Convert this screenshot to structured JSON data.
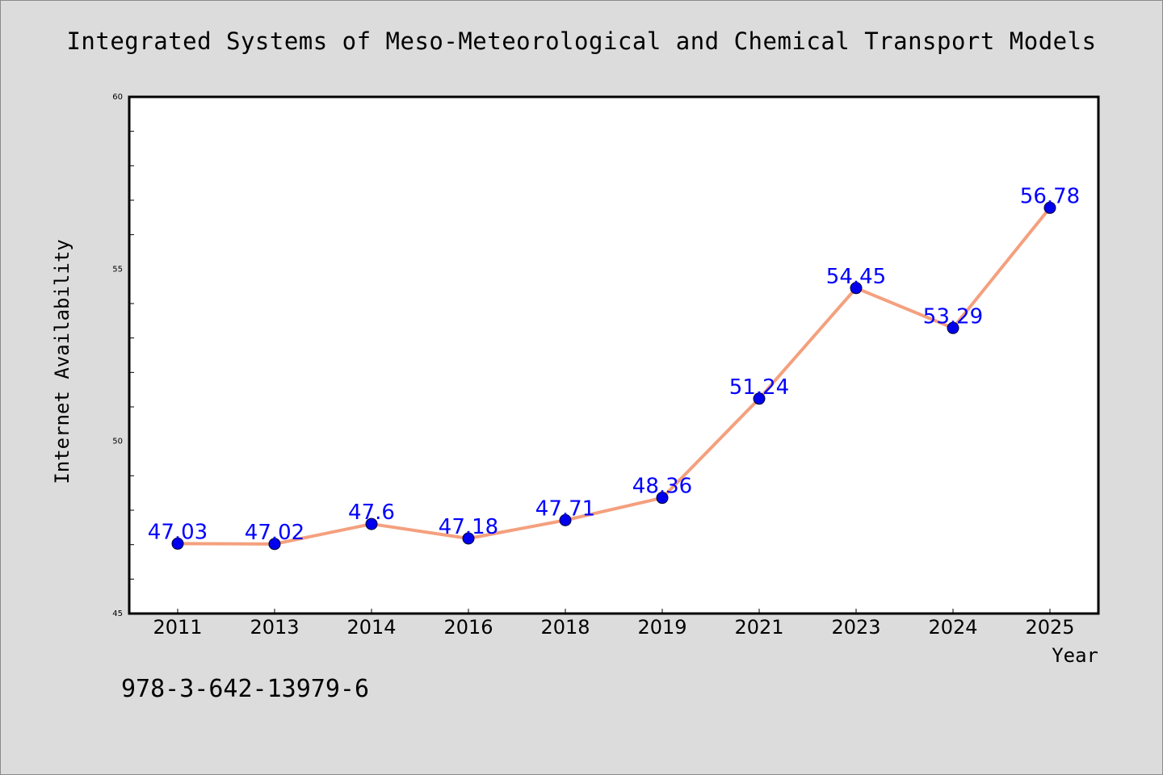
{
  "chart_data": {
    "type": "line",
    "title": "Integrated Systems of Meso-Meteorological and Chemical Transport Models",
    "xlabel": "Year",
    "ylabel": "Internet Availability",
    "categories": [
      "2011",
      "2013",
      "2014",
      "2016",
      "2018",
      "2019",
      "2021",
      "2023",
      "2024",
      "2025"
    ],
    "series": [
      {
        "name": "",
        "values": [
          47.03,
          47.02,
          47.6,
          47.18,
          47.71,
          48.36,
          51.24,
          54.45,
          53.29,
          56.78
        ],
        "data_labels": [
          "47.03",
          "47.02",
          "47.6",
          "47.18",
          "47.71",
          "48.36",
          "51.24",
          "54.45",
          "53.29",
          "56.78"
        ]
      }
    ],
    "ylim": [
      45,
      60
    ],
    "y_ticks": [
      "45",
      "50",
      "55",
      "60"
    ],
    "y_minor_step": 1,
    "grid": false,
    "legend": "none",
    "colors": {
      "line": "#f4a07e",
      "marker": "#0000ee",
      "data_label": "#0000ff",
      "plot_background": "#ffffff",
      "figure_background": "#dcdcdc"
    }
  },
  "footer": {
    "note": "978-3-642-13979-6"
  }
}
